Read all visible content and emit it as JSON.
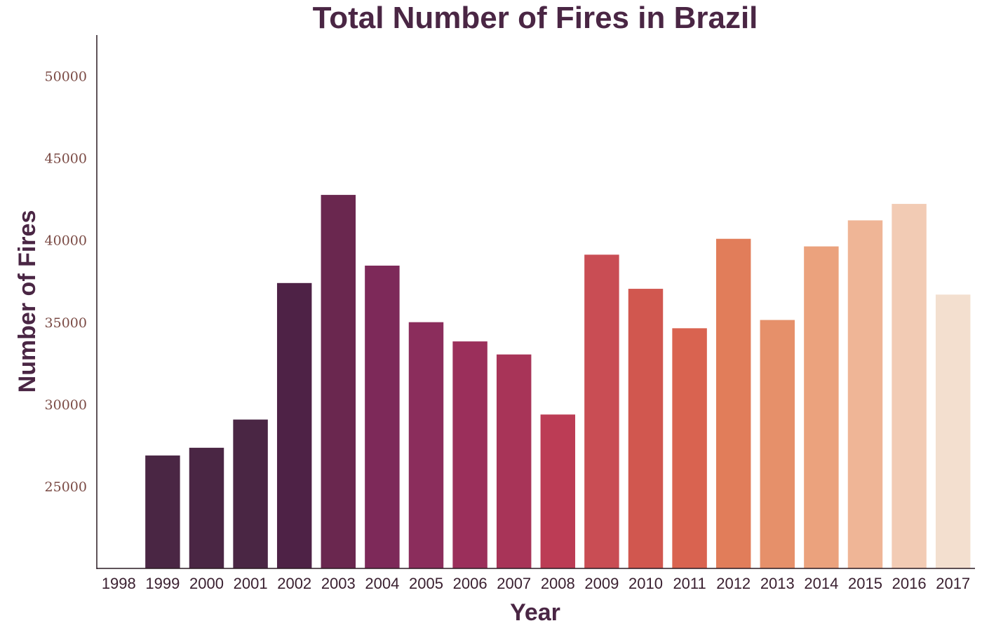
{
  "chart_data": {
    "type": "bar",
    "title": "Total Number of Fires in Brazil",
    "xlabel": "Year",
    "ylabel": "Number of Fires",
    "categories": [
      "1998",
      "1999",
      "2000",
      "2001",
      "2002",
      "2003",
      "2004",
      "2005",
      "2006",
      "2007",
      "2008",
      "2009",
      "2010",
      "2011",
      "2012",
      "2013",
      "2014",
      "2015",
      "2016",
      "2017"
    ],
    "values": [
      20013,
      26882,
      27352,
      29071,
      37390,
      42760,
      38450,
      35004,
      33832,
      33037,
      29378,
      39117,
      37038,
      34634,
      40084,
      35138,
      39621,
      41208,
      42212,
      36685
    ],
    "colors": [
      "#3b1f3b",
      "#4a2644",
      "#4a2644",
      "#4a2644",
      "#4e2246",
      "#6a274f",
      "#7d2959",
      "#8b2d5c",
      "#9b2f5b",
      "#a83458",
      "#bc3c55",
      "#c94d54",
      "#d1574f",
      "#d96350",
      "#e17d5a",
      "#e6906a",
      "#eba27d",
      "#efb596",
      "#f2cbb4",
      "#f3dfcf"
    ],
    "ylim": [
      20000,
      52500
    ],
    "yticks": [
      25000,
      30000,
      35000,
      40000,
      45000,
      50000
    ],
    "ytick_labels": [
      "25000",
      "30000",
      "35000",
      "40000",
      "45000",
      "50000"
    ],
    "grid": false,
    "legend": "none"
  }
}
